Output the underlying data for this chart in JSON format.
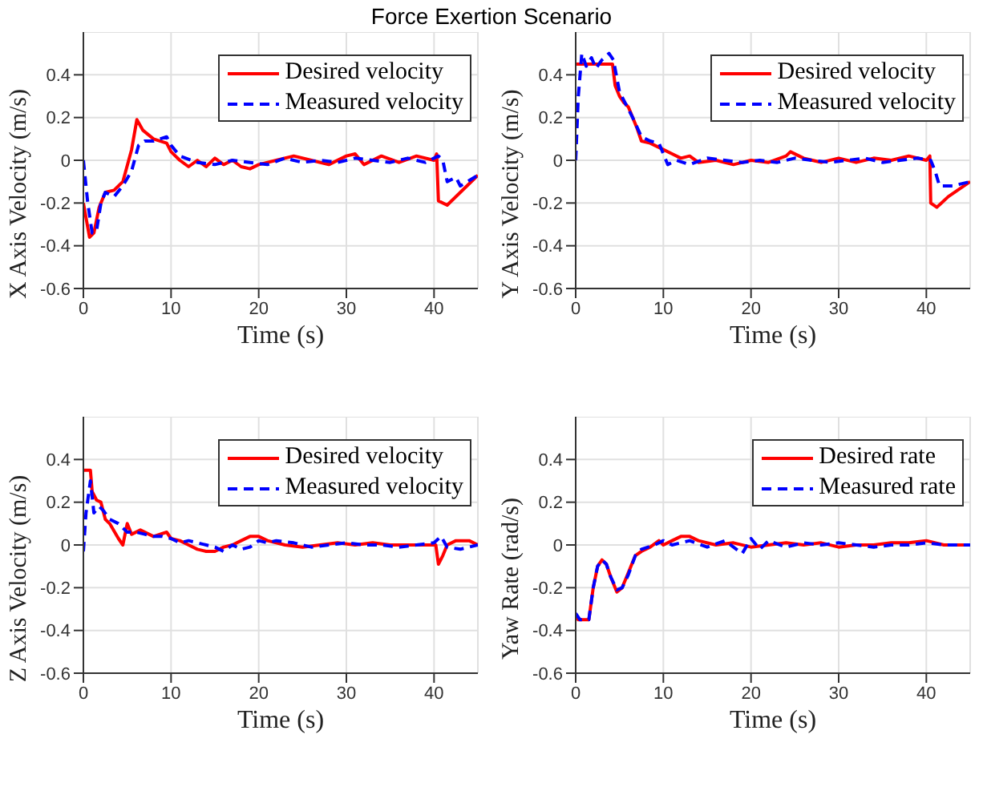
{
  "chart_data": [
    {
      "type": "line",
      "title": "Force Exertion Scenario",
      "xlabel": "Time (s)",
      "ylabel": "X Axis Velocity (m/s)",
      "xlim": [
        0,
        45
      ],
      "xticks": [
        0,
        10,
        20,
        30,
        40
      ],
      "ylim": [
        -0.6,
        0.6
      ],
      "yticks": [
        -0.6,
        -0.4,
        -0.2,
        0,
        0.2,
        0.4
      ],
      "grid": true,
      "legend": "top right",
      "marker": "none",
      "series": [
        {
          "name": "Desired velocity",
          "color": "#ff0000",
          "line_style": "solid",
          "x": [
            0,
            0.7,
            1.2,
            1.8,
            2.5,
            3.5,
            4.5,
            5.5,
            6.1,
            6.8,
            8,
            9.5,
            10,
            11,
            12,
            13,
            14,
            15,
            16,
            17,
            18,
            19,
            20,
            22,
            24,
            26,
            28,
            30,
            31,
            32,
            34,
            36,
            38,
            40,
            40.3,
            40.5,
            41.5,
            43,
            45
          ],
          "values": [
            -0.2,
            -0.36,
            -0.34,
            -0.22,
            -0.15,
            -0.14,
            -0.1,
            0.05,
            0.19,
            0.14,
            0.1,
            0.08,
            0.04,
            0,
            -0.03,
            0,
            -0.03,
            0.01,
            -0.02,
            0,
            -0.03,
            -0.04,
            -0.02,
            0,
            0.02,
            0,
            -0.02,
            0.02,
            0.03,
            -0.02,
            0.02,
            -0.01,
            0.02,
            0,
            0.03,
            -0.19,
            -0.21,
            -0.15,
            -0.07
          ]
        },
        {
          "name": "Measured velocity",
          "color": "#0000ff",
          "line_style": "dashed",
          "x": [
            0,
            0.5,
            1,
            1.5,
            2,
            2.5,
            3.5,
            4.5,
            5.5,
            6.3,
            7,
            8,
            9.5,
            10,
            11,
            13,
            15,
            17,
            19,
            21,
            23,
            25,
            27,
            29,
            31,
            33,
            35,
            37,
            39,
            40.5,
            41,
            41.5,
            42.5,
            43,
            45
          ],
          "values": [
            0,
            -0.2,
            -0.34,
            -0.33,
            -0.2,
            -0.15,
            -0.17,
            -0.12,
            -0.05,
            0.07,
            0.09,
            0.09,
            0.11,
            0.07,
            0.02,
            -0.01,
            -0.02,
            0,
            -0.01,
            -0.02,
            0.01,
            -0.01,
            0,
            -0.01,
            0.01,
            0,
            -0.01,
            0.01,
            -0.01,
            0.02,
            0,
            -0.1,
            -0.08,
            -0.12,
            -0.07
          ]
        }
      ]
    },
    {
      "type": "line",
      "xlabel": "Time (s)",
      "ylabel": "Y Axis Velocity (m/s)",
      "xlim": [
        0,
        45
      ],
      "xticks": [
        0,
        10,
        20,
        30,
        40
      ],
      "ylim": [
        -0.6,
        0.6
      ],
      "yticks": [
        -0.6,
        -0.4,
        -0.2,
        0,
        0.2,
        0.4
      ],
      "grid": true,
      "legend": "top right",
      "marker": "none",
      "series": [
        {
          "name": "Desired velocity",
          "color": "#ff0000",
          "line_style": "solid",
          "x": [
            0,
            4.2,
            4.5,
            5,
            5.5,
            6,
            7,
            7.5,
            8.5,
            10,
            11,
            12,
            13,
            14,
            16,
            18,
            20,
            22,
            24,
            24.5,
            26,
            28,
            30,
            32,
            34,
            36,
            38,
            40,
            40.4,
            40.5,
            41.2,
            42.5,
            45
          ],
          "values": [
            0.45,
            0.45,
            0.35,
            0.3,
            0.27,
            0.25,
            0.15,
            0.09,
            0.08,
            0.05,
            0.03,
            0.01,
            0.02,
            -0.01,
            0,
            -0.02,
            0,
            -0.01,
            0.02,
            0.04,
            0.01,
            -0.01,
            0.01,
            -0.01,
            0.01,
            0,
            0.02,
            0,
            0.02,
            -0.2,
            -0.22,
            -0.17,
            -0.1
          ]
        },
        {
          "name": "Measured velocity",
          "color": "#0000ff",
          "line_style": "dashed",
          "x": [
            0,
            0.3,
            0.7,
            1.2,
            1.8,
            2.3,
            3,
            3.8,
            4.3,
            5,
            5.5,
            6.5,
            7.5,
            8.5,
            9.5,
            10,
            10.5,
            11.5,
            13,
            15,
            17,
            19,
            21,
            23,
            25,
            27,
            29,
            31,
            33,
            35,
            37,
            39,
            40.5,
            41,
            41.5,
            43,
            45
          ],
          "values": [
            0,
            0.3,
            0.5,
            0.44,
            0.48,
            0.43,
            0.47,
            0.5,
            0.47,
            0.32,
            0.28,
            0.2,
            0.11,
            0.09,
            0.08,
            0.03,
            -0.02,
            0,
            -0.02,
            0.01,
            0,
            -0.01,
            0,
            -0.01,
            0.01,
            0,
            -0.01,
            0,
            0.01,
            -0.01,
            0,
            0.01,
            0,
            -0.05,
            -0.12,
            -0.12,
            -0.1
          ]
        }
      ]
    },
    {
      "type": "line",
      "xlabel": "Time (s)",
      "ylabel": "Z Axis Velocity (m/s)",
      "xlim": [
        0,
        45
      ],
      "xticks": [
        0,
        10,
        20,
        30,
        40
      ],
      "ylim": [
        -0.6,
        0.6
      ],
      "yticks": [
        -0.6,
        -0.4,
        -0.2,
        0,
        0.2,
        0.4
      ],
      "grid": true,
      "legend": "top right",
      "marker": "none",
      "series": [
        {
          "name": "Desired velocity",
          "color": "#ff0000",
          "line_style": "solid",
          "x": [
            0,
            0.8,
            1,
            1.5,
            2,
            2.5,
            3,
            4,
            4.5,
            5,
            5.5,
            6.5,
            8,
            9.5,
            10,
            11,
            12,
            13,
            14,
            15,
            16,
            17,
            18,
            19,
            20,
            21,
            23,
            25,
            27,
            29,
            31,
            33,
            35,
            37,
            39,
            40.2,
            40.5,
            41,
            41.5,
            42.5,
            44,
            45
          ],
          "values": [
            0.35,
            0.35,
            0.25,
            0.21,
            0.2,
            0.12,
            0.1,
            0.03,
            0,
            0.1,
            0.05,
            0.07,
            0.04,
            0.06,
            0.03,
            0.02,
            0,
            -0.02,
            -0.03,
            -0.03,
            -0.01,
            0,
            0.02,
            0.04,
            0.04,
            0.02,
            0,
            -0.01,
            0,
            0.01,
            0,
            0.01,
            0,
            0,
            0,
            0,
            -0.09,
            -0.05,
            0,
            0.02,
            0.02,
            0
          ]
        },
        {
          "name": "Measured velocity",
          "color": "#0000ff",
          "line_style": "dashed",
          "x": [
            0,
            0.3,
            0.8,
            1.2,
            1.8,
            2.3,
            3,
            4,
            5,
            6,
            7,
            8,
            9,
            10,
            11,
            12,
            13,
            14,
            15,
            16,
            17,
            18,
            19,
            20,
            21,
            22,
            24,
            26,
            28,
            30,
            32,
            34,
            36,
            38,
            40,
            40.8,
            41.5,
            43,
            45
          ],
          "values": [
            -0.03,
            0.15,
            0.3,
            0.15,
            0.18,
            0.16,
            0.12,
            0.1,
            0.06,
            0.06,
            0.05,
            0.04,
            0.04,
            0.03,
            0.01,
            0.02,
            0.01,
            0,
            -0.01,
            -0.03,
            0,
            -0.02,
            -0.01,
            0.02,
            0.01,
            0.02,
            0.01,
            -0.01,
            0,
            0.01,
            0,
            0,
            -0.01,
            0,
            0.01,
            0.04,
            -0.01,
            -0.02,
            0
          ]
        }
      ]
    },
    {
      "type": "line",
      "xlabel": "Time (s)",
      "ylabel": "Yaw Rate (rad/s)",
      "xlim": [
        0,
        45
      ],
      "xticks": [
        0,
        10,
        20,
        30,
        40
      ],
      "ylim": [
        -0.6,
        0.6
      ],
      "yticks": [
        -0.6,
        -0.4,
        -0.2,
        0,
        0.2,
        0.4
      ],
      "grid": true,
      "legend": "top right",
      "marker": "none",
      "series": [
        {
          "name": "Desired rate",
          "color": "#ff0000",
          "line_style": "solid",
          "x": [
            0,
            0.3,
            1.5,
            2,
            2.5,
            3,
            3.5,
            4,
            4.7,
            5.3,
            6,
            6.8,
            7.5,
            8.5,
            9.5,
            10,
            11,
            12,
            13,
            14,
            16,
            18,
            20,
            22,
            24,
            26,
            28,
            30,
            32,
            34,
            36,
            38,
            40,
            42,
            45
          ],
          "values": [
            -0.33,
            -0.35,
            -0.35,
            -0.2,
            -0.1,
            -0.07,
            -0.09,
            -0.15,
            -0.22,
            -0.2,
            -0.13,
            -0.05,
            -0.03,
            -0.01,
            0.02,
            0,
            0.02,
            0.04,
            0.04,
            0.02,
            0,
            0.01,
            -0.01,
            0,
            0.01,
            0,
            0.01,
            -0.01,
            0,
            0,
            0.01,
            0.01,
            0.02,
            0,
            0
          ]
        },
        {
          "name": "Measured rate",
          "color": "#0000ff",
          "line_style": "dashed",
          "x": [
            0,
            0.5,
            1.5,
            2,
            2.5,
            3,
            3.5,
            4,
            4.7,
            5.3,
            6,
            6.8,
            7.5,
            9,
            10,
            11,
            13,
            15,
            17,
            19,
            20,
            21,
            22,
            24,
            26,
            28,
            30,
            32,
            34,
            36,
            38,
            40,
            42,
            45
          ],
          "values": [
            -0.32,
            -0.35,
            -0.35,
            -0.2,
            -0.1,
            -0.07,
            -0.09,
            -0.15,
            -0.21,
            -0.2,
            -0.14,
            -0.05,
            -0.02,
            0,
            0.02,
            0,
            0.02,
            -0.01,
            0.02,
            -0.04,
            0.03,
            -0.02,
            0.02,
            -0.01,
            0.01,
            0,
            0.01,
            0,
            -0.01,
            0,
            0,
            0.01,
            0,
            0
          ]
        }
      ]
    }
  ]
}
